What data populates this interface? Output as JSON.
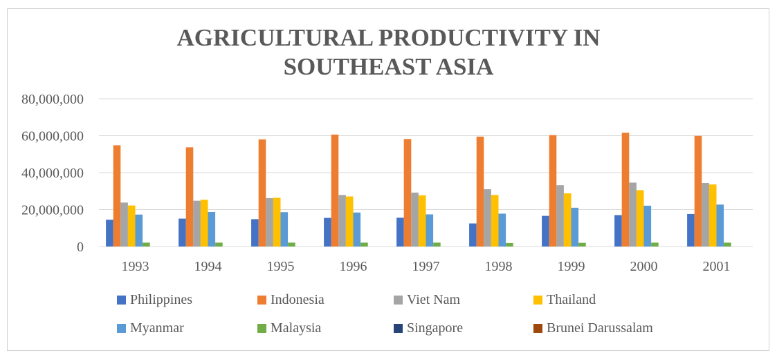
{
  "chart_data": {
    "type": "bar",
    "title": "AGRICULTURAL PRODUCTIVITY IN SOUTHEAST ASIA",
    "title_lines": [
      "AGRICULTURAL PRODUCTIVITY IN",
      "SOUTHEAST ASIA"
    ],
    "xlabel": "",
    "ylabel": "",
    "ylim": [
      0,
      80000000
    ],
    "yticks": [
      0,
      20000000,
      40000000,
      60000000,
      80000000
    ],
    "ytick_labels": [
      "0",
      "20,000,000",
      "40,000,000",
      "60,000,000",
      "80,000,000"
    ],
    "grid": true,
    "legend_position": "bottom",
    "categories": [
      "1993",
      "1994",
      "1995",
      "1996",
      "1997",
      "1998",
      "1999",
      "2000",
      "2001"
    ],
    "series": [
      {
        "name": "Philippines",
        "color": "#4472C4",
        "values": [
          14500000,
          15100000,
          14800000,
          15500000,
          15600000,
          12500000,
          16600000,
          17000000,
          17600000
        ]
      },
      {
        "name": "Indonesia",
        "color": "#ED7D31",
        "values": [
          54800000,
          53700000,
          58000000,
          60600000,
          58200000,
          59500000,
          60300000,
          61600000,
          59900000
        ]
      },
      {
        "name": "Viet Nam",
        "color": "#A5A5A5",
        "values": [
          23800000,
          24800000,
          26200000,
          27900000,
          29200000,
          31000000,
          33200000,
          34600000,
          34400000
        ]
      },
      {
        "name": "Thailand",
        "color": "#FFC000",
        "values": [
          22200000,
          25300000,
          26400000,
          27100000,
          27700000,
          27900000,
          28800000,
          30500000,
          33600000
        ]
      },
      {
        "name": "Myanmar",
        "color": "#5B9BD5",
        "values": [
          17300000,
          18700000,
          18600000,
          18400000,
          17400000,
          17800000,
          21000000,
          22100000,
          22700000
        ]
      },
      {
        "name": "Malaysia",
        "color": "#70AD47",
        "values": [
          2100000,
          2100000,
          2100000,
          2100000,
          2100000,
          1900000,
          2000000,
          2100000,
          2100000
        ]
      },
      {
        "name": "Singapore",
        "color": "#264478",
        "values": [
          0,
          0,
          0,
          0,
          0,
          0,
          0,
          0,
          0
        ]
      },
      {
        "name": "Brunei Darussalam",
        "color": "#9E480E",
        "values": [
          0,
          0,
          0,
          0,
          0,
          0,
          0,
          0,
          0
        ]
      }
    ]
  }
}
